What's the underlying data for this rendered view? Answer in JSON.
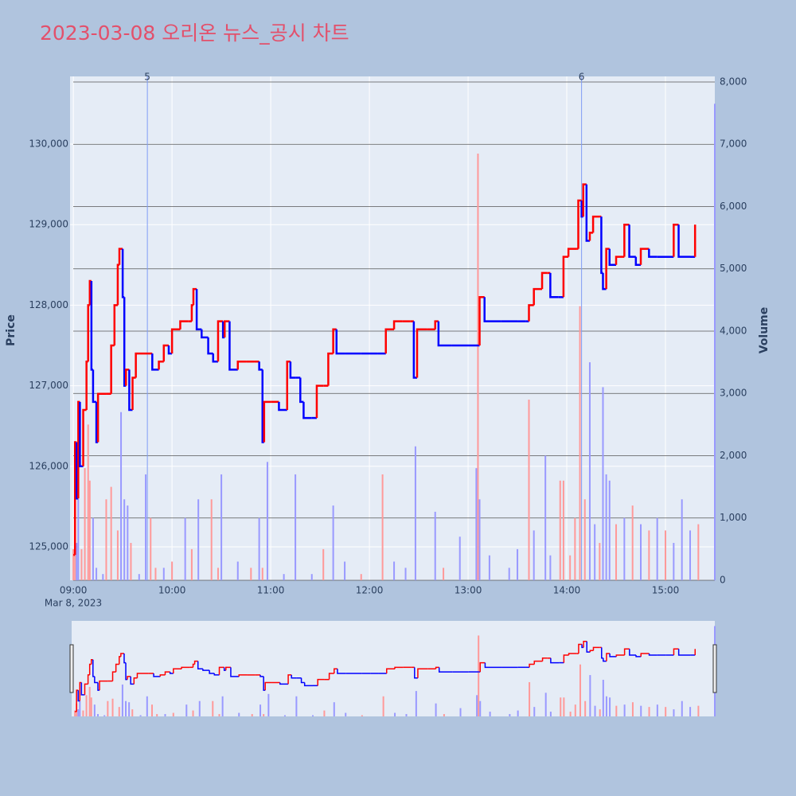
{
  "chart_data": {
    "type": "price-volume",
    "title": "2023-03-08 오리온 뉴스_공시 차트",
    "x_date_label": "Mar 8, 2023",
    "y_label": "Price",
    "y2_label": "Volume",
    "xlim": [
      "08:58",
      "15:30"
    ],
    "xticks": [
      "09:00",
      "10:00",
      "11:00",
      "12:00",
      "13:00",
      "14:00",
      "15:00"
    ],
    "ylim": [
      124585,
      130840
    ],
    "yticks": [
      {
        "value": 125000,
        "label": "125,000"
      },
      {
        "value": 126000,
        "label": "126,000"
      },
      {
        "value": 127000,
        "label": "127,000"
      },
      {
        "value": 128000,
        "label": "128,000"
      },
      {
        "value": 129000,
        "label": "129,000"
      },
      {
        "value": 130000,
        "label": "130,000"
      }
    ],
    "y2lim": [
      0,
      8089
    ],
    "y2ticks": [
      0,
      {
        "value": 1000,
        "label": "1,000"
      },
      {
        "value": 2000,
        "label": "2,000"
      },
      {
        "value": 3000,
        "label": "3,000"
      },
      {
        "value": 4000,
        "label": "4,000"
      },
      {
        "value": 5000,
        "label": "5,000"
      },
      {
        "value": 6000,
        "label": "6,000"
      },
      {
        "value": 7000,
        "label": "7,000"
      },
      {
        "value": 8000,
        "label": "8,000"
      }
    ],
    "up_color": "#ff0000",
    "down_color": "#0000ff",
    "event_color": "#7f9cf5",
    "events": [
      {
        "x": "09:45",
        "label": "5"
      },
      {
        "x": "14:09",
        "label": "6"
      }
    ],
    "rangeslider": true,
    "price": {
      "x": [
        "09:00",
        "09:01",
        "09:02",
        "09:03",
        "09:04",
        "09:06",
        "09:08",
        "09:09",
        "09:10",
        "09:11",
        "09:12",
        "09:14",
        "09:15",
        "09:20",
        "09:23",
        "09:25",
        "09:27",
        "09:28",
        "09:30",
        "09:31",
        "09:32",
        "09:34",
        "09:36",
        "09:38",
        "09:45",
        "09:48",
        "09:52",
        "09:55",
        "09:58",
        "10:00",
        "10:05",
        "10:10",
        "10:12",
        "10:13",
        "10:15",
        "10:18",
        "10:22",
        "10:25",
        "10:28",
        "10:31",
        "10:32",
        "10:35",
        "10:40",
        "10:45",
        "10:50",
        "10:53",
        "10:55",
        "10:56",
        "11:00",
        "11:05",
        "11:10",
        "11:12",
        "11:15",
        "11:18",
        "11:20",
        "11:25",
        "11:28",
        "11:32",
        "11:35",
        "11:38",
        "11:40",
        "11:45",
        "11:55",
        "12:00",
        "12:05",
        "12:10",
        "12:15",
        "12:20",
        "12:25",
        "12:27",
        "12:29",
        "12:35",
        "12:40",
        "12:42",
        "12:50",
        "13:00",
        "13:06",
        "13:07",
        "13:10",
        "13:20",
        "13:30",
        "13:35",
        "13:37",
        "13:40",
        "13:45",
        "13:48",
        "13:50",
        "13:55",
        "13:58",
        "14:01",
        "14:06",
        "14:07",
        "14:09",
        "14:10",
        "14:12",
        "14:14",
        "14:16",
        "14:20",
        "14:21",
        "14:22",
        "14:24",
        "14:26",
        "14:30",
        "14:35",
        "14:38",
        "14:42",
        "14:45",
        "14:50",
        "14:55",
        "15:00",
        "15:05",
        "15:08",
        "15:15",
        "15:18"
      ],
      "values": [
        124900,
        126300,
        125600,
        126800,
        126000,
        126700,
        127300,
        128000,
        128300,
        127200,
        126800,
        126300,
        126900,
        126900,
        127500,
        128000,
        128500,
        128700,
        128100,
        127000,
        127200,
        126700,
        127100,
        127400,
        127400,
        127200,
        127300,
        127500,
        127400,
        127700,
        127800,
        127800,
        128000,
        128200,
        127700,
        127600,
        127400,
        127300,
        127800,
        127600,
        127800,
        127200,
        127300,
        127300,
        127300,
        127200,
        126300,
        126800,
        126800,
        126700,
        127300,
        127100,
        127100,
        126800,
        126600,
        126600,
        127000,
        127000,
        127400,
        127700,
        127400,
        127400,
        127400,
        127400,
        127400,
        127700,
        127800,
        127800,
        127800,
        127100,
        127700,
        127700,
        127800,
        127500,
        127500,
        127500,
        127500,
        128100,
        127800,
        127800,
        127800,
        127800,
        128000,
        128200,
        128400,
        128400,
        128100,
        128100,
        128600,
        128700,
        128700,
        129300,
        129100,
        129500,
        128800,
        128900,
        129100,
        129100,
        128400,
        128200,
        128700,
        128500,
        128600,
        129000,
        128600,
        128500,
        128700,
        128600,
        128600,
        128600,
        129000,
        128600,
        128600,
        129000
      ]
    },
    "volume": {
      "x": [
        "09:00",
        "09:01",
        "09:02",
        "09:03",
        "09:05",
        "09:07",
        "09:09",
        "09:10",
        "09:12",
        "09:14",
        "09:18",
        "09:20",
        "09:23",
        "09:27",
        "09:29",
        "09:31",
        "09:33",
        "09:35",
        "09:40",
        "09:44",
        "09:47",
        "09:50",
        "09:55",
        "10:00",
        "10:08",
        "10:12",
        "10:16",
        "10:24",
        "10:28",
        "10:30",
        "10:40",
        "10:48",
        "10:53",
        "10:55",
        "10:58",
        "11:08",
        "11:15",
        "11:25",
        "11:32",
        "11:38",
        "11:45",
        "11:55",
        "12:08",
        "12:15",
        "12:22",
        "12:28",
        "12:40",
        "12:45",
        "12:55",
        "13:05",
        "13:06",
        "13:07",
        "13:13",
        "13:25",
        "13:30",
        "13:37",
        "13:40",
        "13:47",
        "13:50",
        "13:56",
        "13:58",
        "14:02",
        "14:05",
        "14:08",
        "14:11",
        "14:14",
        "14:17",
        "14:20",
        "14:22",
        "14:24",
        "14:26",
        "14:30",
        "14:35",
        "14:40",
        "14:45",
        "14:50",
        "14:55",
        "15:00",
        "15:05",
        "15:10",
        "15:15",
        "15:20",
        "15:30"
      ],
      "values": [
        500,
        1100,
        600,
        1300,
        500,
        1800,
        2500,
        1600,
        1000,
        200,
        100,
        1300,
        1500,
        800,
        2700,
        1300,
        1200,
        600,
        100,
        1700,
        1000,
        200,
        200,
        300,
        1000,
        500,
        1300,
        1300,
        200,
        1700,
        300,
        200,
        1000,
        200,
        1900,
        100,
        1700,
        100,
        500,
        1200,
        300,
        100,
        1700,
        300,
        200,
        2150,
        1100,
        200,
        700,
        1800,
        6850,
        1300,
        400,
        200,
        500,
        2900,
        800,
        2000,
        400,
        1600,
        1600,
        400,
        1000,
        4400,
        1300,
        3500,
        900,
        600,
        3100,
        1700,
        1600,
        900,
        1000,
        1200,
        900,
        800,
        1000,
        800,
        600,
        1300,
        800,
        900,
        7650
      ],
      "colors": [
        "#ff9999",
        "#ff9999",
        "#9999ff",
        "#9999ff",
        "#ff9999",
        "#ff9999",
        "#ff9999",
        "#ff9999",
        "#9999ff",
        "#9999ff",
        "#9999ff",
        "#ff9999",
        "#ff9999",
        "#ff9999",
        "#9999ff",
        "#9999ff",
        "#9999ff",
        "#ff9999",
        "#9999ff",
        "#9999ff",
        "#ff9999",
        "#ff9999",
        "#9999ff",
        "#ff9999",
        "#9999ff",
        "#ff9999",
        "#9999ff",
        "#ff9999",
        "#ff9999",
        "#9999ff",
        "#9999ff",
        "#ff9999",
        "#9999ff",
        "#ff9999",
        "#9999ff",
        "#9999ff",
        "#9999ff",
        "#9999ff",
        "#ff9999",
        "#9999ff",
        "#9999ff",
        "#ff9999",
        "#ff9999",
        "#9999ff",
        "#9999ff",
        "#9999ff",
        "#9999ff",
        "#ff9999",
        "#9999ff",
        "#9999ff",
        "#ff9999",
        "#9999ff",
        "#9999ff",
        "#9999ff",
        "#9999ff",
        "#ff9999",
        "#9999ff",
        "#9999ff",
        "#9999ff",
        "#ff9999",
        "#ff9999",
        "#ff9999",
        "#ff9999",
        "#ff9999",
        "#ff9999",
        "#9999ff",
        "#9999ff",
        "#ff9999",
        "#9999ff",
        "#9999ff",
        "#9999ff",
        "#ff9999",
        "#9999ff",
        "#ff9999",
        "#9999ff",
        "#ff9999",
        "#9999ff",
        "#ff9999",
        "#9999ff",
        "#9999ff",
        "#9999ff",
        "#ff9999",
        "#9999ff"
      ]
    }
  }
}
